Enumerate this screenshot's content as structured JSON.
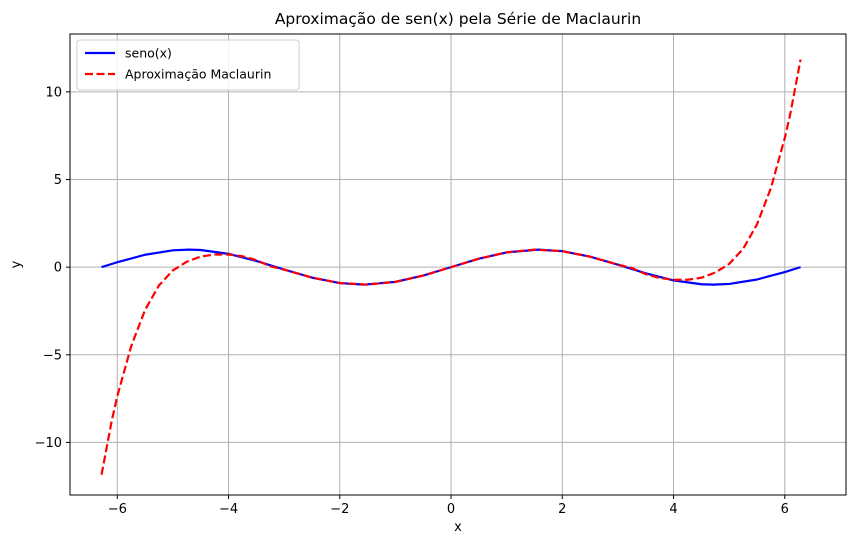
{
  "chart_data": {
    "type": "line",
    "title": "Aproximação de sen(x) pela Série de Maclaurin",
    "xlabel": "x",
    "ylabel": "y",
    "xlim": [
      -6.85,
      7.1
    ],
    "ylim": [
      -13.0,
      13.3
    ],
    "xticks": [
      -6,
      -4,
      -2,
      0,
      2,
      4,
      6
    ],
    "yticks": [
      -10,
      -5,
      0,
      5,
      10
    ],
    "xtick_labels": [
      "−6",
      "−4",
      "−2",
      "0",
      "2",
      "4",
      "6"
    ],
    "ytick_labels": [
      "−10",
      "−5",
      "0",
      "5",
      "10"
    ],
    "grid": true,
    "legend_position": "upper-left",
    "series": [
      {
        "name": "seno(x)",
        "color": "#0000ff",
        "style": "solid",
        "x": [
          -6.283,
          -6.0,
          -5.5,
          -5.0,
          -4.712,
          -4.5,
          -4.0,
          -3.5,
          -3.0,
          -2.5,
          -2.0,
          -1.571,
          -1.0,
          -0.5,
          0.0,
          0.5,
          1.0,
          1.571,
          2.0,
          2.5,
          3.0,
          3.5,
          4.0,
          4.5,
          4.712,
          5.0,
          5.5,
          6.0,
          6.283
        ],
        "y": [
          0.0,
          0.279,
          0.706,
          0.959,
          1.0,
          0.978,
          0.757,
          0.351,
          -0.141,
          -0.598,
          -0.909,
          -1.0,
          -0.841,
          -0.479,
          0.0,
          0.479,
          0.841,
          1.0,
          0.909,
          0.598,
          0.141,
          -0.351,
          -0.757,
          -0.978,
          -1.0,
          -0.959,
          -0.706,
          -0.279,
          0.0
        ]
      },
      {
        "name": "Aproximação Maclaurin",
        "color": "#ff0000",
        "style": "dashed",
        "x": [
          -6.283,
          -6.1,
          -6.0,
          -5.75,
          -5.5,
          -5.25,
          -5.0,
          -4.75,
          -4.5,
          -4.25,
          -4.0,
          -3.75,
          -3.5,
          -3.25,
          -3.0,
          -2.5,
          -2.0,
          -1.5,
          -1.0,
          -0.5,
          0.0,
          0.5,
          1.0,
          1.5,
          2.0,
          2.5,
          3.0,
          3.25,
          3.5,
          3.75,
          4.0,
          4.25,
          4.5,
          4.75,
          5.0,
          5.25,
          5.5,
          5.75,
          6.0,
          6.1,
          6.283
        ],
        "y": [
          -11.84,
          -8.77,
          -7.37,
          -4.51,
          -2.44,
          -1.04,
          -0.183,
          0.308,
          0.606,
          0.72,
          0.72,
          0.62,
          0.401,
          0.05,
          -0.143,
          -0.599,
          -0.909,
          -0.997,
          -0.841,
          -0.479,
          0.0,
          0.479,
          0.841,
          0.997,
          0.909,
          0.599,
          0.143,
          -0.05,
          -0.401,
          -0.62,
          -0.72,
          -0.72,
          -0.606,
          -0.308,
          0.183,
          1.04,
          2.44,
          4.51,
          7.37,
          8.77,
          11.84
        ]
      }
    ]
  }
}
